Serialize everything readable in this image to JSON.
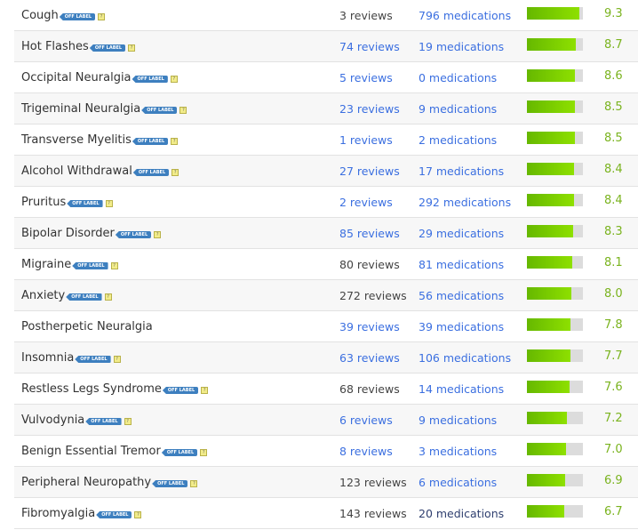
{
  "badge_label": "OFF LABEL",
  "help_icon": "question-icon",
  "colors": {
    "link": "#3b6fe0",
    "badge": "#3d7fbf",
    "bar_fill": "#7cc800",
    "score": "#7ab31e"
  },
  "rows": [
    {
      "condition": "Cough",
      "off_label": true,
      "reviews": "3 reviews",
      "reviews_link": false,
      "medications": "796 medications",
      "med_link": true,
      "score": "9.3",
      "rating": 9.3
    },
    {
      "condition": "Hot Flashes",
      "off_label": true,
      "reviews": "74 reviews",
      "reviews_link": true,
      "medications": "19 medications",
      "med_link": true,
      "score": "8.7",
      "rating": 8.7
    },
    {
      "condition": "Occipital Neuralgia",
      "off_label": true,
      "reviews": "5 reviews",
      "reviews_link": true,
      "medications": "0 medications",
      "med_link": true,
      "score": "8.6",
      "rating": 8.6
    },
    {
      "condition": "Trigeminal Neuralgia",
      "off_label": true,
      "reviews": "23 reviews",
      "reviews_link": true,
      "medications": "9 medications",
      "med_link": true,
      "score": "8.5",
      "rating": 8.5
    },
    {
      "condition": "Transverse Myelitis",
      "off_label": true,
      "reviews": "1 reviews",
      "reviews_link": true,
      "medications": "2 medications",
      "med_link": true,
      "score": "8.5",
      "rating": 8.5
    },
    {
      "condition": "Alcohol Withdrawal",
      "off_label": true,
      "reviews": "27 reviews",
      "reviews_link": true,
      "medications": "17 medications",
      "med_link": true,
      "score": "8.4",
      "rating": 8.4
    },
    {
      "condition": "Pruritus",
      "off_label": true,
      "reviews": "2 reviews",
      "reviews_link": true,
      "medications": "292 medications",
      "med_link": true,
      "score": "8.4",
      "rating": 8.4
    },
    {
      "condition": "Bipolar Disorder",
      "off_label": true,
      "reviews": "85 reviews",
      "reviews_link": true,
      "medications": "29 medications",
      "med_link": true,
      "score": "8.3",
      "rating": 8.3
    },
    {
      "condition": "Migraine",
      "off_label": true,
      "reviews": "80 reviews",
      "reviews_link": false,
      "medications": "81 medications",
      "med_link": true,
      "score": "8.1",
      "rating": 8.1
    },
    {
      "condition": "Anxiety",
      "off_label": true,
      "reviews": "272 reviews",
      "reviews_link": false,
      "medications": "56 medications",
      "med_link": true,
      "score": "8.0",
      "rating": 8.0
    },
    {
      "condition": "Postherpetic Neuralgia",
      "off_label": false,
      "reviews": "39 reviews",
      "reviews_link": true,
      "medications": "39 medications",
      "med_link": true,
      "score": "7.8",
      "rating": 7.8
    },
    {
      "condition": "Insomnia",
      "off_label": true,
      "reviews": "63 reviews",
      "reviews_link": true,
      "medications": "106 medications",
      "med_link": true,
      "score": "7.7",
      "rating": 7.7
    },
    {
      "condition": "Restless Legs Syndrome",
      "off_label": true,
      "reviews": "68 reviews",
      "reviews_link": false,
      "medications": "14 medications",
      "med_link": true,
      "score": "7.6",
      "rating": 7.6
    },
    {
      "condition": "Vulvodynia",
      "off_label": true,
      "reviews": "6 reviews",
      "reviews_link": true,
      "medications": "9 medications",
      "med_link": true,
      "score": "7.2",
      "rating": 7.2
    },
    {
      "condition": "Benign Essential Tremor",
      "off_label": true,
      "reviews": "8 reviews",
      "reviews_link": true,
      "medications": "3 medications",
      "med_link": true,
      "score": "7.0",
      "rating": 7.0
    },
    {
      "condition": "Peripheral Neuropathy",
      "off_label": true,
      "reviews": "123 reviews",
      "reviews_link": false,
      "medications": "6 medications",
      "med_link": true,
      "score": "6.9",
      "rating": 6.9
    },
    {
      "condition": "Fibromyalgia",
      "off_label": true,
      "reviews": "143 reviews",
      "reviews_link": false,
      "medications": "20 medications",
      "med_link": false,
      "score": "6.7",
      "rating": 6.7
    }
  ]
}
